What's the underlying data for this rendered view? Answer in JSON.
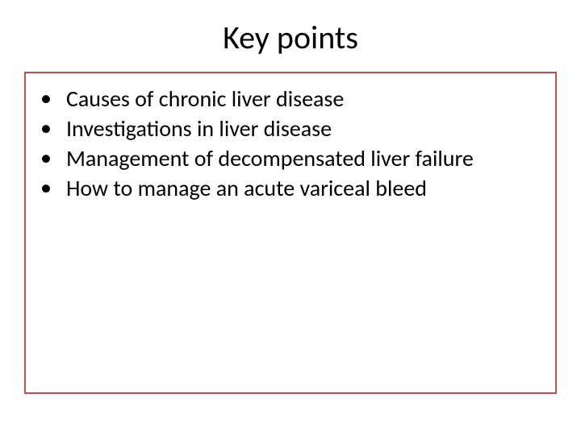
{
  "slide": {
    "title": "Key points",
    "title_fontsize": 40,
    "title_color": "#000000",
    "background_color": "#ffffff",
    "content_box": {
      "border_color": "#c0504d",
      "border_width": 2,
      "background_color": "#ffffff"
    },
    "bullets": [
      {
        "text": "Causes of chronic liver disease"
      },
      {
        "text": "Investigations in liver disease"
      },
      {
        "text": "Management of decompensated liver failure"
      },
      {
        "text": "How to manage an acute variceal bleed"
      }
    ],
    "bullet_fontsize": 28,
    "bullet_color": "#000000",
    "bullet_marker": "•"
  }
}
